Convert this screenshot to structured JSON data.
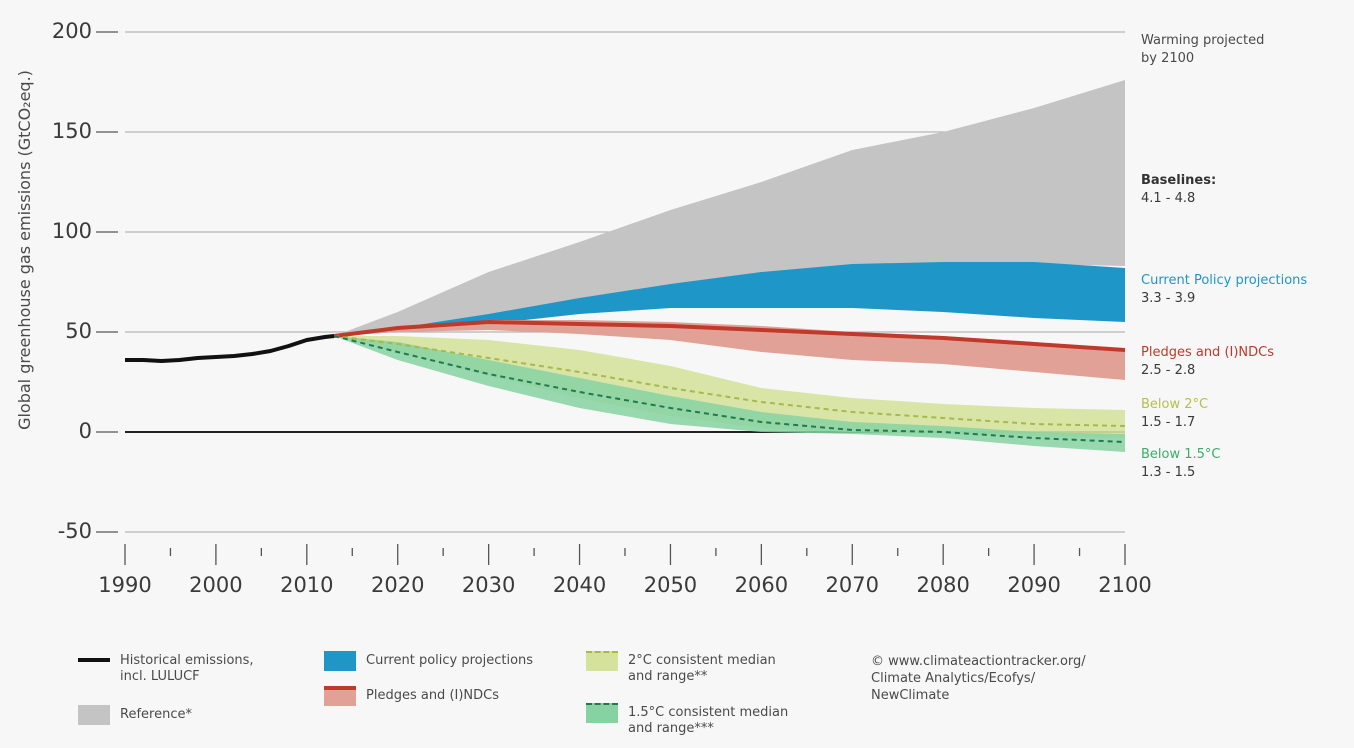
{
  "chart_data": {
    "type": "area",
    "ylabel": "Global greenhouse gas emissions (GtCO₂eq.)",
    "xlabel": "",
    "xlim": [
      1990,
      2100
    ],
    "ylim": [
      -50,
      200
    ],
    "x_ticks": [
      1990,
      2000,
      2010,
      2020,
      2030,
      2040,
      2050,
      2060,
      2070,
      2080,
      2090,
      2100
    ],
    "y_ticks": [
      200,
      150,
      100,
      50,
      0,
      -50
    ],
    "grid": true,
    "historical": {
      "name": "Historical emissions, incl. LULUCF",
      "color": "#111111",
      "points": [
        [
          1990,
          36
        ],
        [
          1992,
          36
        ],
        [
          1994,
          35.5
        ],
        [
          1996,
          36
        ],
        [
          1998,
          37
        ],
        [
          2000,
          37.5
        ],
        [
          2002,
          38
        ],
        [
          2004,
          39
        ],
        [
          2006,
          40.5
        ],
        [
          2008,
          43
        ],
        [
          2010,
          46
        ],
        [
          2012,
          47.5
        ],
        [
          2013,
          48
        ]
      ]
    },
    "reference": {
      "name": "Reference*",
      "color": "#c4c4c4",
      "x": [
        2013,
        2020,
        2030,
        2040,
        2050,
        2060,
        2070,
        2080,
        2090,
        2100
      ],
      "upper": [
        48,
        60,
        80,
        95,
        111,
        125,
        141,
        150,
        162,
        176
      ],
      "lower": [
        48,
        52,
        58,
        66,
        72,
        77,
        80,
        82,
        84,
        83
      ]
    },
    "current_policy": {
      "name": "Current policy projections",
      "color": "#1e96c8",
      "x": [
        2013,
        2020,
        2030,
        2040,
        2050,
        2060,
        2070,
        2080,
        2090,
        2100
      ],
      "upper": [
        48,
        52,
        59,
        67,
        74,
        80,
        84,
        85,
        85,
        82
      ],
      "lower": [
        48,
        50,
        54,
        59,
        62,
        62,
        62,
        60,
        57,
        55
      ]
    },
    "pledges": {
      "name": "Pledges and (I)NDCs",
      "color": "#c0392b",
      "band_color": "#e2a197",
      "x": [
        2013,
        2020,
        2030,
        2040,
        2050,
        2060,
        2070,
        2080,
        2090,
        2100
      ],
      "median": [
        48,
        52,
        55,
        54,
        53,
        51,
        49,
        47,
        44,
        41
      ],
      "upper": [
        48,
        52,
        56,
        56,
        55,
        53,
        50,
        48,
        45,
        41
      ],
      "lower": [
        48,
        50,
        51,
        49,
        46,
        40,
        36,
        34,
        30,
        26
      ]
    },
    "below_2c": {
      "name": "2°C consistent median and range**",
      "color": "#a8b84a",
      "band_color": "#d5e29c",
      "x": [
        2013,
        2020,
        2030,
        2040,
        2050,
        2060,
        2070,
        2080,
        2090,
        2100
      ],
      "median": [
        48,
        44,
        37,
        30,
        22,
        15,
        10,
        7,
        4,
        3
      ],
      "upper": [
        48,
        48,
        46,
        41,
        33,
        22,
        17,
        14,
        12,
        11
      ],
      "lower": [
        48,
        40,
        28,
        17,
        8,
        2,
        0,
        -1,
        -2,
        -3
      ]
    },
    "below_15c": {
      "name": "1.5°C consistent median and range***",
      "color": "#1f7a52",
      "band_color": "#86d2a2",
      "x": [
        2013,
        2020,
        2030,
        2040,
        2050,
        2060,
        2070,
        2080,
        2090,
        2100
      ],
      "median": [
        48,
        40,
        29,
        20,
        12,
        5,
        1,
        0,
        -3,
        -5
      ],
      "upper": [
        48,
        45,
        36,
        27,
        18,
        10,
        5,
        3,
        0,
        -1
      ],
      "lower": [
        48,
        36,
        23,
        12,
        4,
        0,
        -1,
        -3,
        -7,
        -10
      ]
    },
    "right_labels": [
      {
        "title": "Warming projected\nby 2100",
        "value": "",
        "color": "#4a4a4a",
        "bold": false,
        "at_y": 200
      },
      {
        "title": "Baselines:",
        "value": "4.1 - 4.8",
        "color": "#333333",
        "bold": true,
        "at_y": 130
      },
      {
        "title": "Current Policy projections",
        "value": "3.3 - 3.9",
        "color": "#1e96c8",
        "bold": false,
        "at_y": 80
      },
      {
        "title": "Pledges and (I)NDCs",
        "value": "2.5 - 2.8",
        "color": "#c0392b",
        "bold": false,
        "at_y": 44
      },
      {
        "title": "Below 2°C",
        "value": "1.5 - 1.7",
        "color": "#b4c04a",
        "bold": false,
        "at_y": 18
      },
      {
        "title": "Below 1.5°C",
        "value": "1.3 - 1.5",
        "color": "#3aae6a",
        "bold": false,
        "at_y": -7
      }
    ]
  },
  "legend": {
    "historical": "Historical emissions,\nincl. LULUCF",
    "reference": "Reference*",
    "current_policy": "Current policy projections",
    "pledges": "Pledges and (I)NDCs",
    "two_c": "2°C consistent median\nand range**",
    "one_five_c": "1.5°C consistent median\nand range***"
  },
  "credit": "© www.climateactiontracker.org/\nClimate Analytics/Ecofys/\nNewClimate"
}
